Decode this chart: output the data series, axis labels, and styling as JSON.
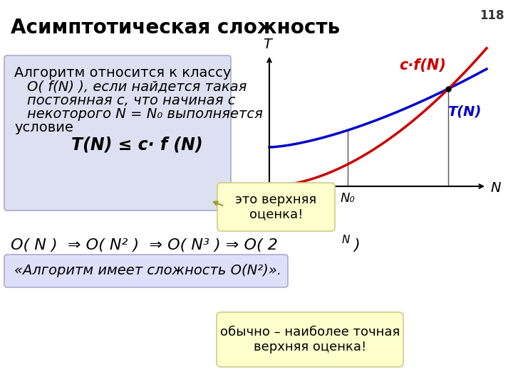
{
  "title": "Асимптотическая сложность",
  "page_number": "118",
  "bg_color": "#ffffff",
  "title_color": "#000000",
  "title_fontsize": 20,
  "box1_bg": "#dde0f0",
  "box1_border": "#aaaacc",
  "box2_bg": "#ffffcc",
  "box2_border": "#cccc88",
  "box3_bg": "#dde0f8",
  "box3_border": "#aaaacc",
  "box4_bg": "#ffffcc",
  "box4_border": "#cccc88",
  "curve_red_color": "#cc0000",
  "curve_blue_color": "#0000cc",
  "graph_bg": "#ffffff",
  "page_num_fontsize": 12,
  "text_fontsize": 14,
  "formula_fontsize": 16,
  "box2_text": "это верхняя\nоценка!",
  "box4_text": "обычно – наиболее точная\nверхняя оценка!"
}
